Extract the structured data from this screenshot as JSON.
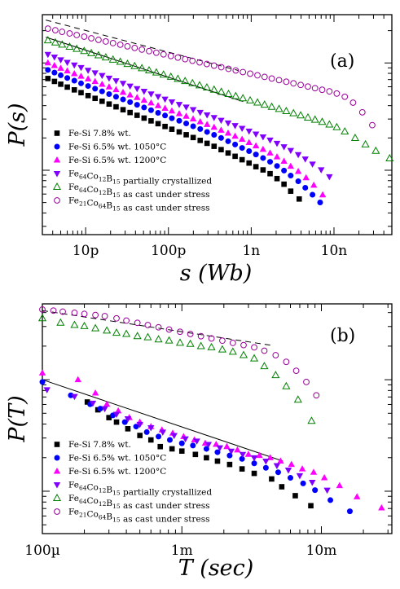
{
  "chart_data": [
    {
      "type": "scatter",
      "panel_label": "(a)",
      "ylabel": "P(s)",
      "xlabel": "s (Wb)",
      "xscale": "log",
      "yscale": "log",
      "xlim": [
        3e-12,
        5e-08
      ],
      "x_ticks": [
        {
          "value": 1e-11,
          "label": "10p"
        },
        {
          "value": 1e-10,
          "label": "100p"
        },
        {
          "value": 1e-09,
          "label": "1n"
        },
        {
          "value": 1e-08,
          "label": "10n"
        }
      ],
      "legend_position": "bottom-left",
      "series": [
        {
          "name": "Fe-Si 7.8% wt.",
          "marker": "square-filled",
          "color": "#000000",
          "x": [
            3.5e-12,
            4.2e-12,
            5e-12,
            6e-12,
            7.3e-12,
            8.8e-12,
            1.07e-11,
            1.3e-11,
            1.58e-11,
            1.92e-11,
            2.33e-11,
            2.83e-11,
            3.44e-11,
            4.18e-11,
            5.08e-11,
            6.17e-11,
            7.5e-11,
            9.1e-11,
            1.1e-10,
            1.35e-10,
            1.64e-10,
            1.99e-10,
            2.42e-10,
            2.93e-10,
            3.56e-10,
            4.33e-10,
            5.26e-10,
            6.39e-10,
            7.76e-10,
            9.42e-10,
            1.14e-09,
            1.39e-09,
            1.69e-09,
            2.05e-09,
            2.49e-09,
            3e-09,
            3.8e-09
          ],
          "y": [
            0.855,
            0.828,
            0.802,
            0.775,
            0.749,
            0.723,
            0.696,
            0.67,
            0.643,
            0.617,
            0.591,
            0.564,
            0.538,
            0.512,
            0.486,
            0.46,
            0.434,
            0.408,
            0.382,
            0.357,
            0.331,
            0.305,
            0.278,
            0.251,
            0.223,
            0.192,
            0.161,
            0.13,
            0.098,
            0.067,
            0.033,
            0.003,
            -0.032,
            -0.078,
            -0.13,
            -0.195,
            -0.268
          ]
        },
        {
          "name": "Fe-Si 6.5% wt. 1050°C",
          "marker": "circle-filled",
          "color": "#0000ff",
          "x": [
            3.5e-12,
            4.2e-12,
            5e-12,
            6e-12,
            7.3e-12,
            8.8e-12,
            1.07e-11,
            1.3e-11,
            1.58e-11,
            1.92e-11,
            2.33e-11,
            2.83e-11,
            3.44e-11,
            4.18e-11,
            5.08e-11,
            6.17e-11,
            7.5e-11,
            9.1e-11,
            1.1e-10,
            1.35e-10,
            1.64e-10,
            1.99e-10,
            2.42e-10,
            2.93e-10,
            3.56e-10,
            4.33e-10,
            5.26e-10,
            6.39e-10,
            7.76e-10,
            9.42e-10,
            1.14e-09,
            1.39e-09,
            1.69e-09,
            2.05e-09,
            2.49e-09,
            3e-09,
            3.7e-09,
            4.5e-09,
            5.5e-09,
            6.8e-09
          ],
          "y": [
            0.935,
            0.91,
            0.885,
            0.86,
            0.835,
            0.81,
            0.785,
            0.76,
            0.735,
            0.71,
            0.685,
            0.66,
            0.635,
            0.61,
            0.585,
            0.56,
            0.535,
            0.51,
            0.485,
            0.461,
            0.436,
            0.41,
            0.384,
            0.357,
            0.33,
            0.301,
            0.27,
            0.24,
            0.208,
            0.178,
            0.147,
            0.114,
            0.079,
            0.04,
            -0.003,
            -0.05,
            -0.103,
            -0.163,
            -0.228,
            -0.3
          ]
        },
        {
          "name": "Fe-Si 6.5% wt. 1200°C",
          "marker": "triangle-up-filled",
          "color": "#ff00ff",
          "x": [
            3.5e-12,
            4.2e-12,
            5e-12,
            6e-12,
            7.3e-12,
            8.8e-12,
            1.07e-11,
            1.3e-11,
            1.58e-11,
            1.92e-11,
            2.33e-11,
            2.83e-11,
            3.44e-11,
            4.18e-11,
            5.08e-11,
            6.17e-11,
            7.5e-11,
            9.1e-11,
            1.1e-10,
            1.35e-10,
            1.64e-10,
            1.99e-10,
            2.42e-10,
            2.93e-10,
            3.56e-10,
            4.33e-10,
            5.26e-10,
            6.39e-10,
            7.76e-10,
            9.42e-10,
            1.14e-09,
            1.39e-09,
            1.69e-09,
            2.05e-09,
            2.49e-09,
            3e-09,
            3.7e-09,
            4.6e-09,
            5.7e-09,
            7.3e-09
          ],
          "y": [
            1.0,
            0.975,
            0.95,
            0.925,
            0.9,
            0.876,
            0.851,
            0.826,
            0.801,
            0.776,
            0.751,
            0.726,
            0.701,
            0.677,
            0.652,
            0.627,
            0.602,
            0.577,
            0.552,
            0.527,
            0.503,
            0.478,
            0.452,
            0.426,
            0.4,
            0.373,
            0.345,
            0.317,
            0.288,
            0.258,
            0.227,
            0.194,
            0.16,
            0.124,
            0.083,
            0.037,
            -0.012,
            -0.07,
            -0.14,
            -0.23
          ]
        },
        {
          "name": "Fe64Co12B15 partially crystallized",
          "marker": "triangle-down-filled",
          "color": "#8000ff",
          "x": [
            3.5e-12,
            4.2e-12,
            5e-12,
            6e-12,
            7.3e-12,
            8.8e-12,
            1.07e-11,
            1.3e-11,
            1.58e-11,
            1.92e-11,
            2.33e-11,
            2.83e-11,
            3.44e-11,
            4.18e-11,
            5.08e-11,
            6.17e-11,
            7.5e-11,
            9.1e-11,
            1.1e-10,
            1.35e-10,
            1.64e-10,
            1.99e-10,
            2.42e-10,
            2.93e-10,
            3.56e-10,
            4.33e-10,
            5.26e-10,
            6.39e-10,
            7.76e-10,
            9.42e-10,
            1.14e-09,
            1.39e-09,
            1.69e-09,
            2.05e-09,
            2.49e-09,
            3e-09,
            3.7e-09,
            4.5e-09,
            5.5e-09,
            7e-09,
            8.8e-09
          ],
          "y": [
            1.08,
            1.055,
            1.03,
            1.006,
            0.981,
            0.957,
            0.932,
            0.908,
            0.883,
            0.859,
            0.834,
            0.81,
            0.785,
            0.761,
            0.736,
            0.712,
            0.687,
            0.663,
            0.638,
            0.614,
            0.589,
            0.565,
            0.54,
            0.516,
            0.491,
            0.466,
            0.441,
            0.416,
            0.391,
            0.365,
            0.338,
            0.311,
            0.282,
            0.251,
            0.219,
            0.185,
            0.146,
            0.105,
            0.058,
            0.005,
            -0.06
          ]
        },
        {
          "name": "Fe64Co12B15 as cast under stress",
          "marker": "triangle-up-open",
          "color": "#008000",
          "x": [
            3.5e-12,
            4.3e-12,
            5.2e-12,
            6.4e-12,
            7.8e-12,
            9.6e-12,
            1.17e-11,
            1.43e-11,
            1.75e-11,
            2.14e-11,
            2.62e-11,
            3.2e-11,
            3.91e-11,
            4.78e-11,
            5.84e-11,
            7.14e-11,
            8.73e-11,
            1.07e-10,
            1.3e-10,
            1.59e-10,
            1.95e-10,
            2.38e-10,
            2.91e-10,
            3.56e-10,
            4.35e-10,
            5.32e-10,
            6.5e-10,
            7.94e-10,
            9.71e-10,
            1.19e-09,
            1.45e-09,
            1.77e-09,
            2.17e-09,
            2.65e-09,
            3.24e-09,
            3.96e-09,
            4.84e-09,
            5.9e-09,
            7.2e-09,
            8.8e-09,
            1.08e-08,
            1.35e-08,
            1.8e-08,
            2.4e-08,
            3.2e-08,
            4.7e-08
          ],
          "y": [
            1.21,
            1.19,
            1.17,
            1.15,
            1.13,
            1.11,
            1.09,
            1.07,
            1.05,
            1.03,
            1.01,
            0.99,
            0.97,
            0.95,
            0.93,
            0.91,
            0.89,
            0.87,
            0.85,
            0.83,
            0.81,
            0.79,
            0.77,
            0.75,
            0.73,
            0.71,
            0.69,
            0.67,
            0.65,
            0.63,
            0.61,
            0.59,
            0.57,
            0.55,
            0.53,
            0.51,
            0.49,
            0.47,
            0.45,
            0.425,
            0.4,
            0.36,
            0.3,
            0.24,
            0.18,
            0.11
          ]
        },
        {
          "name": "Fe21Co64B15 as cast under stress",
          "marker": "circle-open",
          "color": "#990099",
          "x": [
            3.5e-12,
            4.3e-12,
            5.2e-12,
            6.4e-12,
            7.8e-12,
            9.6e-12,
            1.17e-11,
            1.43e-11,
            1.75e-11,
            2.14e-11,
            2.62e-11,
            3.2e-11,
            3.91e-11,
            4.78e-11,
            5.84e-11,
            7.14e-11,
            8.73e-11,
            1.07e-10,
            1.3e-10,
            1.59e-10,
            1.95e-10,
            2.38e-10,
            2.91e-10,
            3.56e-10,
            4.35e-10,
            5.32e-10,
            6.5e-10,
            7.94e-10,
            9.71e-10,
            1.19e-09,
            1.45e-09,
            1.77e-09,
            2.17e-09,
            2.65e-09,
            3.24e-09,
            3.96e-09,
            4.84e-09,
            5.9e-09,
            7.2e-09,
            8.8e-09,
            1.08e-08,
            1.35e-08,
            1.7e-08,
            2.2e-08,
            2.9e-08
          ],
          "y": [
            1.32,
            1.305,
            1.29,
            1.275,
            1.26,
            1.245,
            1.23,
            1.215,
            1.2,
            1.185,
            1.17,
            1.155,
            1.14,
            1.125,
            1.11,
            1.095,
            1.08,
            1.065,
            1.05,
            1.035,
            1.02,
            1.005,
            0.99,
            0.975,
            0.96,
            0.945,
            0.93,
            0.915,
            0.9,
            0.885,
            0.87,
            0.855,
            0.84,
            0.825,
            0.81,
            0.795,
            0.78,
            0.765,
            0.75,
            0.735,
            0.715,
            0.685,
            0.63,
            0.54,
            0.42
          ]
        }
      ],
      "guide_lines": [
        {
          "style": "dashed",
          "x": [
            3.3e-12,
            7e-10
          ],
          "y": [
            1.4,
            0.93
          ]
        },
        {
          "style": "solid",
          "x": [
            3.3e-12,
            8e-10
          ],
          "y": [
            1.24,
            0.64
          ]
        }
      ]
    },
    {
      "type": "scatter",
      "panel_label": "(b)",
      "ylabel": "P(T)",
      "xlabel": "T (sec)",
      "xscale": "log",
      "yscale": "log",
      "xlim": [
        0.0001,
        0.032
      ],
      "x_ticks": [
        {
          "value": 0.0001,
          "label": "100µ"
        },
        {
          "value": 0.001,
          "label": "1m"
        },
        {
          "value": 0.01,
          "label": "10m"
        }
      ],
      "legend_position": "bottom-left",
      "series": [
        {
          "name": "Fe-Si 7.8% wt.",
          "marker": "square-filled",
          "color": "#000000",
          "x": [
            0.00021,
            0.00025,
            0.0003,
            0.00034,
            0.00041,
            0.0005,
            0.0006,
            0.0007,
            0.00085,
            0.001,
            0.00125,
            0.0015,
            0.0018,
            0.0022,
            0.0027,
            0.0033,
            0.0044,
            0.0052,
            0.0065,
            0.0084
          ],
          "y": [
            0.8,
            0.73,
            0.66,
            0.62,
            0.56,
            0.5,
            0.46,
            0.4,
            0.38,
            0.36,
            0.33,
            0.3,
            0.27,
            0.24,
            0.2,
            0.16,
            0.11,
            0.04,
            -0.04,
            -0.13
          ]
        },
        {
          "name": "Fe-Si 6.5% wt. 1050°C",
          "marker": "circle-filled",
          "color": "#0000ff",
          "x": [
            0.0001,
            0.00016,
            0.00022,
            0.00026,
            0.00032,
            0.00039,
            0.00047,
            0.00056,
            0.00068,
            0.00082,
            0.001,
            0.0012,
            0.0015,
            0.0018,
            0.0022,
            0.0027,
            0.0033,
            0.004,
            0.0049,
            0.006,
            0.0074,
            0.009,
            0.0116,
            0.016
          ],
          "y": [
            0.98,
            0.86,
            0.78,
            0.74,
            0.68,
            0.62,
            0.58,
            0.53,
            0.49,
            0.46,
            0.43,
            0.41,
            0.38,
            0.35,
            0.32,
            0.29,
            0.25,
            0.21,
            0.17,
            0.12,
            0.07,
            0.01,
            -0.08,
            -0.18
          ]
        },
        {
          "name": "Fe-Si 6.5% wt. 1200°C",
          "marker": "triangle-up-filled",
          "color": "#ff00ff",
          "x": [
            0.0001,
            0.00018,
            0.00024,
            0.00029,
            0.00035,
            0.00042,
            0.0005,
            0.0006,
            0.00072,
            0.00086,
            0.00103,
            0.00123,
            0.00147,
            0.00176,
            0.0021,
            0.0025,
            0.003,
            0.0036,
            0.0043,
            0.0051,
            0.0061,
            0.0073,
            0.0088,
            0.0105,
            0.0135,
            0.018,
            0.027
          ],
          "y": [
            1.06,
            1.0,
            0.88,
            0.78,
            0.72,
            0.66,
            0.62,
            0.58,
            0.55,
            0.52,
            0.49,
            0.46,
            0.43,
            0.42,
            0.4,
            0.37,
            0.33,
            0.32,
            0.3,
            0.27,
            0.24,
            0.2,
            0.17,
            0.12,
            0.05,
            -0.05,
            -0.15
          ]
        },
        {
          "name": "Fe64Co12B15 partially crystallized",
          "marker": "triangle-down-filled",
          "color": "#8000ff",
          "x": [
            0.000108,
            0.00017,
            0.00023,
            0.00028,
            0.00034,
            0.00041,
            0.0005,
            0.0006,
            0.00073,
            0.00088,
            0.00106,
            0.00128,
            0.00155,
            0.00187,
            0.00226,
            0.00273,
            0.0033,
            0.004,
            0.0048,
            0.0058,
            0.007,
            0.0086,
            0.011
          ],
          "y": [
            0.91,
            0.85,
            0.79,
            0.74,
            0.69,
            0.65,
            0.6,
            0.57,
            0.53,
            0.5,
            0.47,
            0.45,
            0.42,
            0.39,
            0.36,
            0.33,
            0.3,
            0.27,
            0.23,
            0.19,
            0.14,
            0.08,
            0.01
          ]
        },
        {
          "name": "Fe64Co12B15 as cast under stress",
          "marker": "triangle-up-open",
          "color": "#008000",
          "x": [
            0.0001,
            0.000135,
            0.00017,
            0.0002,
            0.00024,
            0.00029,
            0.00034,
            0.0004,
            0.00048,
            0.00057,
            0.00068,
            0.00081,
            0.00097,
            0.00115,
            0.00137,
            0.00163,
            0.00195,
            0.00232,
            0.00277,
            0.0033,
            0.0039,
            0.0047,
            0.0056,
            0.0068,
            0.0085
          ],
          "y": [
            1.55,
            1.51,
            1.49,
            1.48,
            1.46,
            1.44,
            1.42,
            1.41,
            1.39,
            1.38,
            1.36,
            1.35,
            1.33,
            1.32,
            1.3,
            1.29,
            1.27,
            1.25,
            1.22,
            1.19,
            1.12,
            1.04,
            0.94,
            0.82,
            0.63
          ]
        },
        {
          "name": "Fe21Co64B15 as cast under stress",
          "marker": "circle-open",
          "color": "#990099",
          "x": [
            0.0001,
            0.00012,
            0.00014,
            0.00017,
            0.0002,
            0.00024,
            0.00028,
            0.00034,
            0.0004,
            0.00048,
            0.00057,
            0.00068,
            0.00081,
            0.00097,
            0.00115,
            0.00137,
            0.00163,
            0.00195,
            0.00232,
            0.00277,
            0.0033,
            0.0039,
            0.0047,
            0.0056,
            0.0066,
            0.0078,
            0.0092
          ],
          "y": [
            1.63,
            1.62,
            1.61,
            1.6,
            1.59,
            1.58,
            1.57,
            1.55,
            1.53,
            1.51,
            1.49,
            1.47,
            1.45,
            1.43,
            1.41,
            1.39,
            1.37,
            1.35,
            1.33,
            1.31,
            1.29,
            1.26,
            1.22,
            1.16,
            1.08,
            0.98,
            0.86
          ]
        }
      ],
      "guide_lines": [
        {
          "style": "dashed",
          "x": [
            0.0001,
            0.0043
          ],
          "y": [
            1.62,
            1.31
          ]
        },
        {
          "style": "solid",
          "x": [
            0.0001,
            0.0053
          ],
          "y": [
            1.0,
            0.27
          ]
        }
      ]
    }
  ]
}
